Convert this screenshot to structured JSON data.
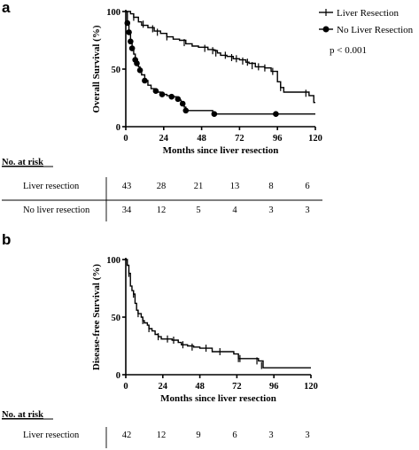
{
  "panels": [
    {
      "letter": "a",
      "chart_data": {
        "type": "line",
        "xlabel": "Months since liver resection",
        "ylabel": "Overall Survival (%)",
        "xlim": [
          0,
          120
        ],
        "ylim": [
          0,
          100
        ],
        "xticks": [
          0,
          24,
          48,
          72,
          96,
          120
        ],
        "yticks": [
          0,
          50,
          100
        ],
        "annotation": "p < 0.001",
        "legend_position": "top-right",
        "series": [
          {
            "name": "Liver Resection",
            "marker": "tick",
            "steps": [
              [
                0,
                100
              ],
              [
                3,
                98
              ],
              [
                5,
                95
              ],
              [
                8,
                91
              ],
              [
                10,
                88
              ],
              [
                14,
                86
              ],
              [
                18,
                83
              ],
              [
                22,
                81
              ],
              [
                26,
                78
              ],
              [
                30,
                76
              ],
              [
                34,
                75
              ],
              [
                38,
                72
              ],
              [
                42,
                70
              ],
              [
                46,
                69
              ],
              [
                52,
                67
              ],
              [
                56,
                66
              ],
              [
                58,
                64
              ],
              [
                60,
                62
              ],
              [
                64,
                61
              ],
              [
                68,
                59
              ],
              [
                72,
                58
              ],
              [
                76,
                56
              ],
              [
                78,
                55
              ],
              [
                82,
                52
              ],
              [
                88,
                51
              ],
              [
                92,
                48
              ],
              [
                96,
                39
              ],
              [
                98,
                34
              ],
              [
                100,
                30
              ],
              [
                116,
                27
              ],
              [
                119,
                21
              ]
            ],
            "censored": [
              [
                5,
                95
              ],
              [
                11,
                89
              ],
              [
                17,
                85
              ],
              [
                20,
                82
              ],
              [
                26,
                78
              ],
              [
                37,
                73
              ],
              [
                50,
                68
              ],
              [
                55,
                66
              ],
              [
                57,
                64
              ],
              [
                63,
                62
              ],
              [
                67,
                60
              ],
              [
                70,
                59
              ],
              [
                74,
                57
              ],
              [
                77,
                56
              ],
              [
                80,
                53
              ],
              [
                84,
                52
              ],
              [
                88,
                51
              ],
              [
                93,
                48
              ],
              [
                98,
                34
              ],
              [
                114,
                29
              ]
            ]
          },
          {
            "name": "No Liver Resection",
            "marker": "dot",
            "steps": [
              [
                0,
                100
              ],
              [
                1,
                90
              ],
              [
                2,
                82
              ],
              [
                3,
                74
              ],
              [
                4,
                68
              ],
              [
                5,
                63
              ],
              [
                6,
                58
              ],
              [
                7,
                55
              ],
              [
                8,
                52
              ],
              [
                9,
                49
              ],
              [
                10,
                45
              ],
              [
                12,
                40
              ],
              [
                14,
                36
              ],
              [
                16,
                33
              ],
              [
                18,
                31
              ],
              [
                20,
                30
              ],
              [
                22,
                28
              ],
              [
                26,
                27
              ],
              [
                30,
                26
              ],
              [
                32,
                25
              ],
              [
                34,
                23
              ],
              [
                35,
                20
              ],
              [
                37,
                17
              ],
              [
                38,
                14
              ],
              [
                55,
                11
              ],
              [
                120,
                11
              ]
            ],
            "censored": [
              [
                1,
                90
              ],
              [
                2,
                82
              ],
              [
                3,
                74
              ],
              [
                4,
                68
              ],
              [
                6,
                58
              ],
              [
                7,
                55
              ],
              [
                9,
                49
              ],
              [
                12,
                40
              ],
              [
                19,
                31
              ],
              [
                23,
                28
              ],
              [
                29,
                26
              ],
              [
                33,
                24
              ],
              [
                36,
                20
              ],
              [
                38,
                14
              ],
              [
                56,
                11
              ],
              [
                95,
                11
              ]
            ]
          }
        ]
      },
      "risk_table": {
        "header": "No. at risk",
        "rows": [
          {
            "label": "Liver resection",
            "values": [
              "43",
              "28",
              "21",
              "13",
              "8",
              "6"
            ]
          },
          {
            "label": "No liver resection",
            "values": [
              "34",
              "12",
              "5",
              "4",
              "3",
              "3"
            ]
          }
        ]
      }
    },
    {
      "letter": "b",
      "chart_data": {
        "type": "line",
        "xlabel": "Months since liver resection",
        "ylabel": "Disease-free Survival (%)",
        "xlim": [
          0,
          120
        ],
        "ylim": [
          0,
          100
        ],
        "xticks": [
          0,
          24,
          48,
          72,
          96,
          120
        ],
        "yticks": [
          0,
          50,
          100
        ],
        "series": [
          {
            "name": "",
            "marker": "tick",
            "steps": [
              [
                0,
                100
              ],
              [
                1,
                95
              ],
              [
                2,
                88
              ],
              [
                3,
                77
              ],
              [
                4,
                73
              ],
              [
                5,
                70
              ],
              [
                6,
                62
              ],
              [
                7,
                56
              ],
              [
                8,
                53
              ],
              [
                10,
                50
              ],
              [
                11,
                47
              ],
              [
                12,
                45
              ],
              [
                14,
                43
              ],
              [
                15,
                40
              ],
              [
                17,
                38
              ],
              [
                19,
                35
              ],
              [
                21,
                33
              ],
              [
                23,
                31
              ],
              [
                30,
                30
              ],
              [
                34,
                28
              ],
              [
                36,
                26
              ],
              [
                40,
                25
              ],
              [
                44,
                24
              ],
              [
                48,
                23
              ],
              [
                56,
                20
              ],
              [
                70,
                18
              ],
              [
                73,
                14
              ],
              [
                86,
                12
              ],
              [
                89,
                6
              ],
              [
                120,
                6
              ]
            ],
            "censored": [
              [
                2,
                88
              ],
              [
                5,
                70
              ],
              [
                8,
                53
              ],
              [
                11,
                47
              ],
              [
                15,
                40
              ],
              [
                21,
                33
              ],
              [
                27,
                31
              ],
              [
                31,
                30
              ],
              [
                37,
                26
              ],
              [
                43,
                24
              ],
              [
                52,
                23
              ],
              [
                61,
                20
              ],
              [
                73,
                14
              ],
              [
                74,
                14
              ],
              [
                85,
                12
              ],
              [
                88,
                8
              ]
            ]
          }
        ]
      },
      "risk_table": {
        "header": "No. at risk",
        "rows": [
          {
            "label": "Liver resection",
            "values": [
              "42",
              "12",
              "9",
              "6",
              "3",
              "3"
            ]
          }
        ]
      }
    }
  ]
}
